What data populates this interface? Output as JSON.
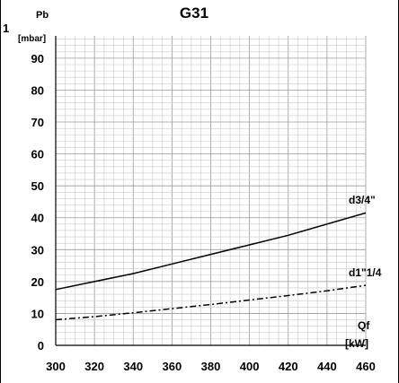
{
  "figure_marker": "1",
  "chart_data": {
    "type": "line",
    "title": "G31",
    "ylabel": "Pb",
    "ylabel_unit": "[mbar]",
    "xlabel": "Qf",
    "xlabel_unit": "[kW]",
    "xlim": [
      300,
      460
    ],
    "ylim": [
      0,
      97
    ],
    "x_ticks": [
      300,
      320,
      340,
      360,
      380,
      400,
      420,
      440,
      460
    ],
    "y_ticks": [
      0,
      10,
      20,
      30,
      40,
      50,
      60,
      70,
      80,
      90
    ],
    "grid": true,
    "series": [
      {
        "name": "d3/4\"",
        "style": "solid",
        "color": "#000000",
        "x": [
          300,
          320,
          340,
          360,
          380,
          400,
          420,
          440,
          460
        ],
        "y": [
          17.5,
          20,
          22.5,
          25.5,
          28.5,
          31.5,
          34.5,
          38,
          41.5
        ]
      },
      {
        "name": "d1\"1/4",
        "style": "dashdot",
        "color": "#000000",
        "x": [
          300,
          320,
          340,
          360,
          380,
          400,
          420,
          440,
          460
        ],
        "y": [
          8,
          9,
          10.2,
          11.5,
          12.8,
          14.2,
          15.6,
          17.1,
          18.8
        ]
      }
    ]
  }
}
